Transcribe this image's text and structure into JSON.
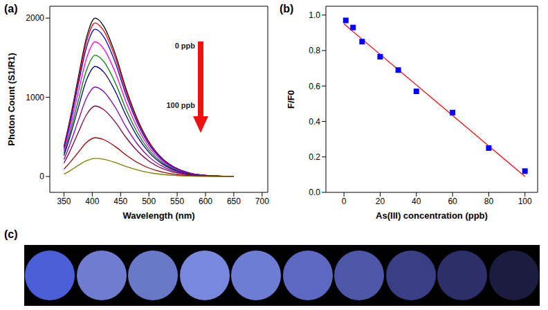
{
  "chart_data": [
    {
      "type": "line",
      "title": "(a)",
      "x_label": "Wavelength (nm)",
      "y_label": "Photon Count (S1/R1)",
      "grid": false,
      "x": [
        350,
        360,
        375,
        390,
        405,
        420,
        440,
        460,
        480,
        500,
        525,
        550,
        575,
        600,
        625,
        650
      ],
      "series": [
        {
          "color": "#000000",
          "values": [
            380,
            700,
            1240,
            1760,
            2000,
            1900,
            1560,
            1100,
            720,
            440,
            220,
            100,
            40,
            16,
            6,
            0
          ]
        },
        {
          "color": "#ff0000",
          "values": [
            369,
            679,
            1203,
            1707,
            1940,
            1843,
            1513,
            1067,
            698,
            427,
            213,
            97,
            39,
            16,
            6,
            0
          ]
        },
        {
          "color": "#0000ff",
          "values": [
            353,
            651,
            1153,
            1637,
            1860,
            1767,
            1451,
            1023,
            670,
            409,
            205,
            93,
            37,
            15,
            6,
            0
          ]
        },
        {
          "color": "#ff00ff",
          "values": [
            323,
            595,
            1054,
            1496,
            1700,
            1615,
            1326,
            935,
            612,
            374,
            187,
            85,
            34,
            14,
            5,
            0
          ]
        },
        {
          "color": "#008000",
          "values": [
            291,
            536,
            949,
            1346,
            1530,
            1454,
            1193,
            842,
            551,
            337,
            168,
            77,
            31,
            12,
            5,
            0
          ]
        },
        {
          "color": "#000080",
          "values": [
            264,
            487,
            862,
            1223,
            1390,
            1321,
            1084,
            765,
            500,
            306,
            153,
            70,
            28,
            11,
            4,
            0
          ]
        },
        {
          "color": "#8000c0",
          "values": [
            215,
            396,
            701,
            994,
            1130,
            1074,
            881,
            622,
            407,
            249,
            124,
            57,
            23,
            9,
            3,
            0
          ]
        },
        {
          "color": "#800040",
          "values": [
            169,
            312,
            552,
            783,
            890,
            846,
            694,
            490,
            320,
            196,
            98,
            45,
            18,
            7,
            3,
            0
          ]
        },
        {
          "color": "#a00000",
          "values": [
            93,
            172,
            304,
            431,
            490,
            466,
            382,
            270,
            176,
            108,
            54,
            25,
            10,
            4,
            1,
            0
          ]
        },
        {
          "color": "#808000",
          "values": [
            30,
            70,
            140,
            200,
            230,
            219,
            179,
            127,
            83,
            51,
            25,
            12,
            5,
            2,
            1,
            0
          ]
        }
      ],
      "xlim": [
        325,
        710
      ],
      "xticks": [
        350,
        400,
        450,
        500,
        550,
        600,
        650,
        700
      ],
      "ylim": [
        -200,
        2150
      ],
      "yticks": [
        0,
        1000,
        2000
      ],
      "annotations": [
        "0 ppb",
        "100 ppb"
      ]
    },
    {
      "type": "scatter",
      "title": "(b)",
      "x_label": "As(III) concentration (ppb)",
      "y_label": "F/F0",
      "grid": false,
      "series": [
        {
          "type": "scatter",
          "color": "#0000ff",
          "marker": "square",
          "x": [
            1,
            5,
            10,
            20,
            30,
            40,
            60,
            80,
            100
          ],
          "values": [
            0.97,
            0.93,
            0.85,
            0.765,
            0.69,
            0.57,
            0.45,
            0.25,
            0.12
          ]
        },
        {
          "type": "line",
          "color": "#ff0000",
          "line_style": "solid",
          "x": [
            0,
            100
          ],
          "values": [
            0.95,
            0.09
          ]
        }
      ],
      "xlim": [
        -10,
        107
      ],
      "xticks": [
        0,
        20,
        40,
        60,
        80,
        100
      ],
      "ylim": [
        0,
        1.05
      ],
      "yticks": [
        {
          "value": 0,
          "label": "0.0"
        },
        {
          "value": 0.2,
          "label": "0.2"
        },
        {
          "value": 0.4,
          "label": "0.4"
        },
        {
          "value": 0.6,
          "label": "0.6"
        },
        {
          "value": 0.8,
          "label": "0.8"
        },
        {
          "value": 1,
          "label": "1.0"
        }
      ]
    },
    {
      "type": "image",
      "title": "(c)",
      "colors": [
        "#4a5fd8",
        "#6f7cd0",
        "#6a78c8",
        "#7888dd",
        "#6f7cd4",
        "#5d68c2",
        "#4d57a8",
        "#3a3f85",
        "#2c2f6a",
        "#1c1c40"
      ]
    }
  ]
}
